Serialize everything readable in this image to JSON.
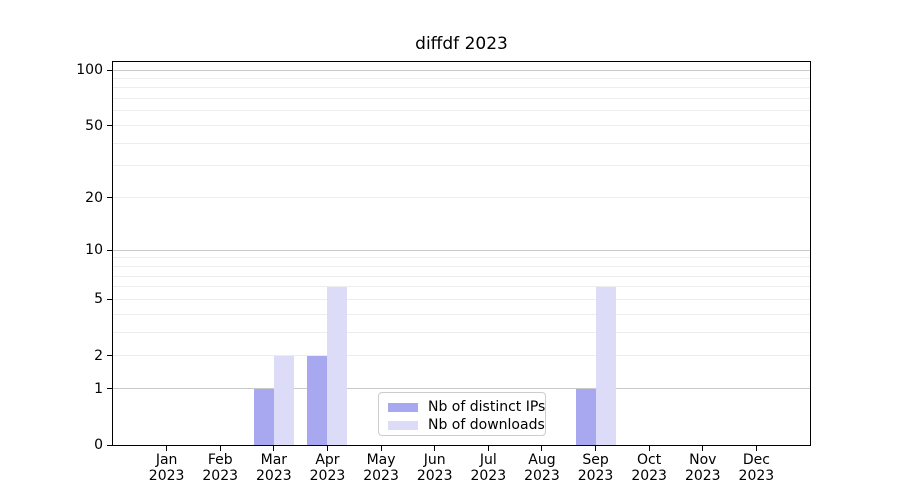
{
  "chart_data": {
    "type": "bar",
    "title": "diffdf 2023",
    "x_tick_months": [
      "Jan",
      "Feb",
      "Mar",
      "Apr",
      "May",
      "Jun",
      "Jul",
      "Aug",
      "Sep",
      "Oct",
      "Nov",
      "Dec"
    ],
    "x_tick_year": "2023",
    "series": [
      {
        "name": "Nb of distinct IPs",
        "color": "#a8a8f0",
        "values": [
          0,
          0,
          1,
          2,
          0,
          0,
          0,
          0,
          1,
          0,
          0,
          0
        ]
      },
      {
        "name": "Nb of downloads",
        "color": "#dcdcf9",
        "values": [
          0,
          0,
          2,
          6,
          0,
          0,
          0,
          0,
          6,
          0,
          0,
          0
        ]
      }
    ],
    "y_scale": "log10(1+y)",
    "y_ticks": [
      0,
      1,
      2,
      5,
      10,
      20,
      50,
      100
    ],
    "y_max": 100,
    "grid": {
      "major_values": [
        1,
        10,
        100
      ],
      "minor_values": [
        2,
        3,
        4,
        5,
        6,
        7,
        8,
        9,
        20,
        30,
        40,
        50,
        60,
        70,
        80,
        90
      ],
      "major_color": "#c9c9c9",
      "minor_color": "#ededed"
    },
    "legend_position": "lower center",
    "axis_color": "#000000",
    "background_color": "#ffffff"
  }
}
